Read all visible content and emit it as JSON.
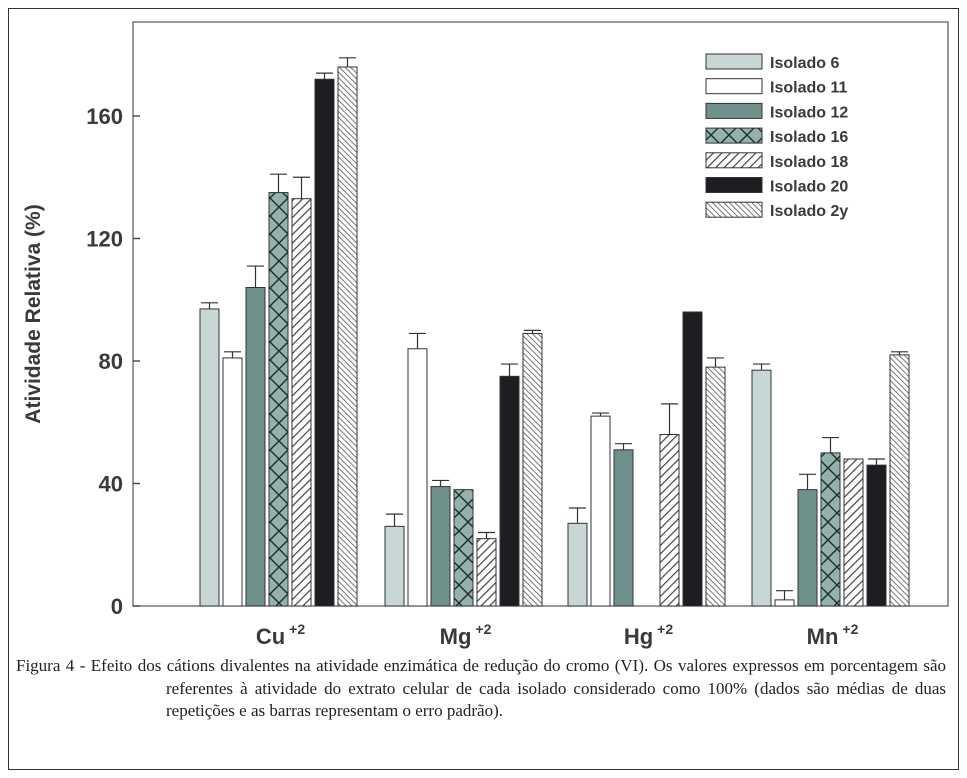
{
  "chart_data": {
    "type": "bar",
    "title": "",
    "xlabel": "",
    "ylabel": "Atividade Relativa (%)",
    "ylim": [
      0,
      190
    ],
    "yticks": [
      0,
      40,
      80,
      120,
      160
    ],
    "categories": [
      {
        "base": "Cu",
        "sup": "+2"
      },
      {
        "base": "Mg",
        "sup": "+2"
      },
      {
        "base": "Hg",
        "sup": "+2"
      },
      {
        "base": "Mn",
        "sup": "+2"
      }
    ],
    "legend_position": "top-right",
    "grid": false,
    "series": [
      {
        "name": "Isolado 6",
        "pattern": "light-gray",
        "values": [
          97,
          26,
          27,
          77
        ],
        "errors": [
          2,
          4,
          5,
          2
        ]
      },
      {
        "name": "Isolado 11",
        "pattern": "white",
        "values": [
          81,
          84,
          62,
          2
        ],
        "errors": [
          2,
          5,
          1,
          3
        ]
      },
      {
        "name": "Isolado 12",
        "pattern": "teal-gray",
        "values": [
          104,
          39,
          51,
          38
        ],
        "errors": [
          7,
          2,
          2,
          5
        ]
      },
      {
        "name": "Isolado 16",
        "pattern": "crosshatch",
        "values": [
          135,
          38,
          0,
          50
        ],
        "errors": [
          6,
          0,
          0,
          5
        ]
      },
      {
        "name": "Isolado 18",
        "pattern": "diagonal",
        "values": [
          133,
          22,
          56,
          48
        ],
        "errors": [
          7,
          2,
          10,
          0
        ]
      },
      {
        "name": "Isolado 20",
        "pattern": "black",
        "values": [
          172,
          75,
          96,
          46
        ],
        "errors": [
          2,
          4,
          0,
          2
        ]
      },
      {
        "name": "Isolado 2y",
        "pattern": "fine-diagonal",
        "values": [
          176,
          89,
          78,
          82
        ],
        "errors": [
          3,
          1,
          3,
          1
        ]
      }
    ],
    "legend_labels": [
      "Isolado 6",
      "Isolado 11",
      "Isolado 12",
      "Isolado 16",
      "Isolado 18",
      "Isolado 20",
      "Isolado 2y"
    ]
  },
  "caption": {
    "text": "Figura 4 - Efeito dos cátions divalentes na atividade enzimática de redução do cromo (VI). Os valores expressos em porcentagem são referentes à atividade do extrato celular de cada isolado considerado como 100% (dados são médias de duas repetições e as barras representam o erro padrão)."
  }
}
